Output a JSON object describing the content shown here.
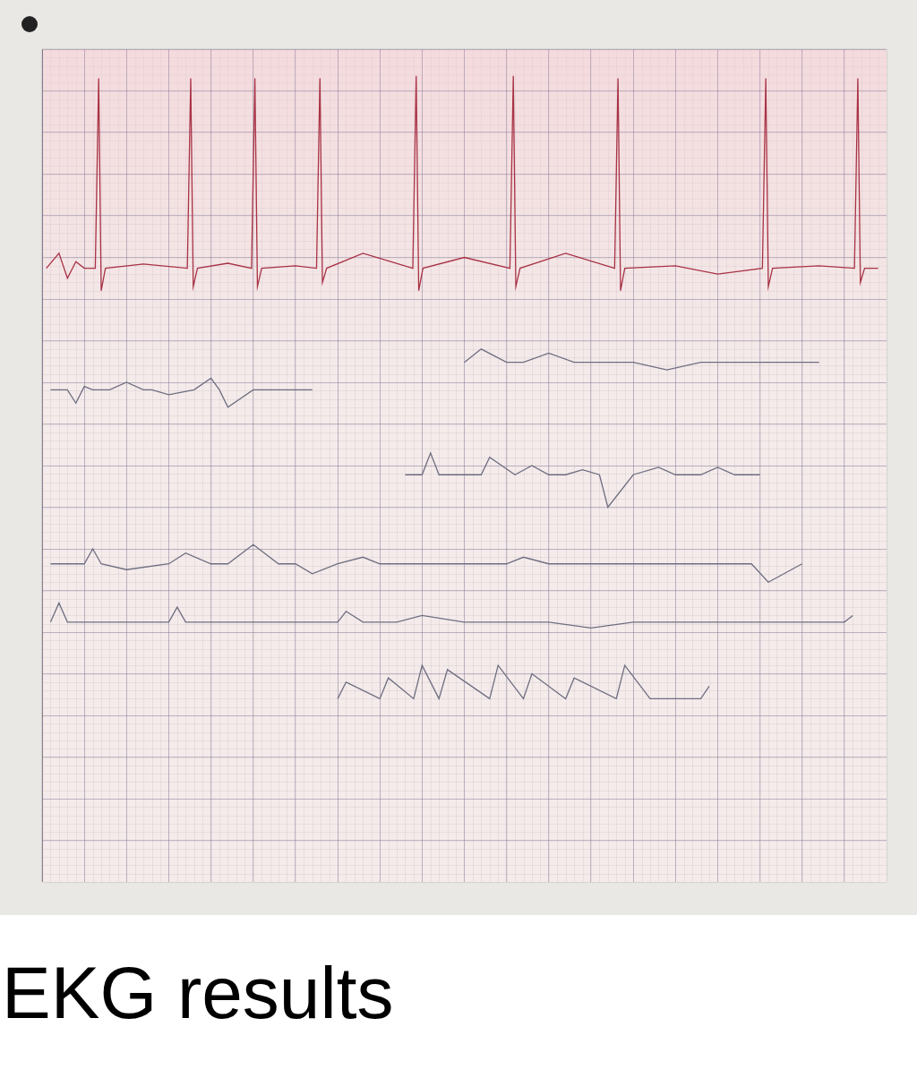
{
  "chart_data": {
    "type": "line",
    "title": "EKG results",
    "xlim": [
      0,
      100
    ],
    "ylim": [
      0,
      100
    ],
    "xticks": [
      0,
      5,
      10,
      15,
      20,
      25,
      30,
      35,
      40,
      45,
      50,
      55,
      60,
      65,
      70,
      75,
      80,
      85,
      90,
      95,
      100
    ],
    "yticks": [
      0,
      5,
      10,
      15,
      20,
      25,
      30,
      35,
      40,
      45,
      50,
      55,
      60,
      65,
      70,
      75,
      80,
      85,
      90,
      95,
      100
    ],
    "grid": true,
    "tick_labels": false,
    "series": [
      {
        "color": "#a83245",
        "x": [
          0.5,
          2,
          3,
          4,
          5,
          6.3,
          6.7,
          7,
          7.5,
          12,
          17.2,
          17.6,
          17.9,
          18.4,
          22,
          24.8,
          25.2,
          25.5,
          26,
          30,
          32.5,
          32.9,
          33.2,
          33.7,
          38,
          43.9,
          44.3,
          44.6,
          45.1,
          50,
          55.4,
          55.8,
          56.1,
          56.6,
          62,
          67.8,
          68.2,
          68.5,
          69,
          75,
          80,
          85.3,
          85.7,
          86,
          86.5,
          92,
          96.2,
          96.6,
          96.9,
          97.4,
          99
        ],
        "values": [
          73.7,
          75.5,
          72.5,
          74.5,
          73.7,
          73.7,
          96.5,
          71,
          73.7,
          74.2,
          73.7,
          96.5,
          71.5,
          73.7,
          74.3,
          73.7,
          96.5,
          71.5,
          73.7,
          74,
          73.7,
          96.5,
          72,
          73.7,
          75.5,
          73.7,
          96.8,
          71,
          73.7,
          75,
          73.7,
          96.8,
          71.5,
          73.7,
          75.5,
          73.7,
          96.5,
          71,
          73.7,
          74,
          73,
          73.7,
          96.5,
          71.5,
          73.7,
          74,
          73.7,
          96.5,
          72,
          73.7,
          73.7
        ]
      },
      {
        "color": "#6e6e80",
        "x": [
          1,
          3,
          4,
          5,
          6,
          8,
          10,
          12,
          13,
          15,
          18,
          20,
          21,
          22,
          25,
          28,
          30,
          32,
          40,
          50,
          52,
          55,
          57,
          60,
          63,
          66,
          70,
          74,
          78,
          82,
          85,
          88,
          92
        ],
        "values": [
          59.1,
          59.1,
          57.5,
          59.5,
          59.1,
          59.1,
          60,
          59.1,
          59.1,
          58.5,
          59.1,
          60.5,
          59.1,
          57,
          59.1,
          59.1,
          59.1,
          59.1,
          null,
          62.4,
          64,
          62.4,
          62.4,
          63.5,
          62.4,
          62.4,
          62.4,
          61.5,
          62.4,
          62.4,
          62.4,
          62.4,
          62.4
        ]
      },
      {
        "color": "#6e6e80",
        "x": [
          43,
          45,
          46,
          47,
          50,
          52,
          53,
          56,
          58,
          60,
          62,
          64,
          66,
          67,
          70,
          73,
          75,
          78,
          80,
          82,
          85
        ],
        "values": [
          48.9,
          48.9,
          51.5,
          48.9,
          48.9,
          48.9,
          51,
          48.9,
          50,
          48.9,
          48.9,
          49.5,
          48.9,
          45,
          48.9,
          49.8,
          48.9,
          48.9,
          49.8,
          48.9,
          48.9
        ]
      },
      {
        "color": "#6e6e80",
        "x": [
          1,
          5,
          6,
          7,
          10,
          15,
          17,
          20,
          22,
          25,
          28,
          30,
          32,
          35,
          38,
          40,
          45,
          50,
          55,
          57,
          60,
          65,
          70,
          75,
          80,
          84,
          86,
          90
        ],
        "values": [
          38.2,
          38.2,
          40,
          38.2,
          37.5,
          38.2,
          39.5,
          38.2,
          38.2,
          40.5,
          38.2,
          38.2,
          37,
          38.2,
          39,
          38.2,
          38.2,
          38.2,
          38.2,
          39,
          38.2,
          38.2,
          38.2,
          38.2,
          38.2,
          38.2,
          36,
          38.2
        ]
      },
      {
        "color": "#6e6e80",
        "x": [
          1,
          2,
          3,
          10,
          15,
          16,
          17,
          30,
          35,
          36,
          38,
          42,
          45,
          50,
          55,
          60,
          65,
          70,
          95,
          96
        ],
        "values": [
          31.2,
          33.5,
          31.2,
          31.2,
          31.2,
          33,
          31.2,
          31.2,
          31.2,
          32.5,
          31.2,
          31.2,
          32,
          31.2,
          31.2,
          31.2,
          30.5,
          31.2,
          31.2,
          32
        ]
      },
      {
        "color": "#6e6e80",
        "x": [
          35,
          36,
          40,
          41,
          44,
          45,
          47,
          48,
          53,
          54,
          57,
          58,
          62,
          63,
          68,
          69,
          72,
          78,
          79
        ],
        "values": [
          22,
          24,
          22,
          24.5,
          22,
          26,
          22,
          25.5,
          22,
          26,
          22,
          25,
          22,
          24.5,
          22,
          26,
          22,
          22,
          23.5
        ]
      }
    ]
  }
}
